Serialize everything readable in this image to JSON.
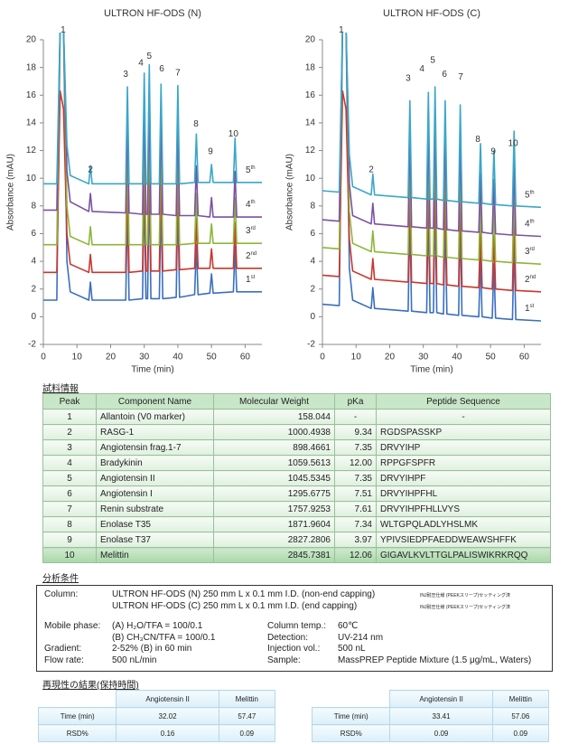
{
  "chart_data": [
    {
      "type": "line",
      "title": "ULTRON HF-ODS (N)",
      "x_label": "Time (min)",
      "y_label": "Absorbance (mAU)",
      "xlim": [
        0,
        65
      ],
      "ylim": [
        -2,
        20
      ],
      "xticks": [
        0,
        10,
        20,
        30,
        40,
        50,
        60
      ],
      "yticks": [
        -2,
        0,
        2,
        4,
        6,
        8,
        10,
        12,
        14,
        16,
        18,
        20
      ],
      "x": [
        0,
        4,
        5,
        6,
        7,
        8,
        13.5,
        14,
        14.5,
        24.5,
        25,
        25.5,
        29.5,
        30,
        30.5,
        31,
        31.5,
        32,
        34.5,
        35,
        35.5,
        39.5,
        40,
        40.5,
        45,
        45.5,
        46,
        49.5,
        50,
        50.5,
        56.5,
        57,
        57.5,
        65
      ],
      "series": [
        {
          "name": "1st",
          "color": "#3a6fc0",
          "values": [
            1.2,
            1.2,
            21,
            21,
            4,
            1.8,
            1.2,
            2.5,
            1.2,
            1.2,
            8.2,
            1.2,
            1.3,
            9.3,
            1.3,
            1.3,
            9.9,
            1.3,
            1.3,
            8.5,
            1.3,
            1.4,
            8.5,
            1.4,
            1.6,
            5.2,
            1.6,
            1.7,
            3.1,
            1.7,
            1.8,
            5.1,
            1.8,
            1.8
          ]
        },
        {
          "name": "2nd",
          "color": "#c8372d",
          "values": [
            3.2,
            3.2,
            16.3,
            15,
            6,
            3.8,
            3.2,
            4.5,
            3.2,
            3.2,
            10.2,
            3.2,
            3.3,
            11.3,
            3.3,
            3.3,
            11.9,
            3.3,
            3.3,
            10.5,
            3.3,
            3.4,
            10.5,
            3.4,
            3.5,
            7.1,
            3.5,
            3.5,
            4.9,
            3.5,
            3.5,
            6.8,
            3.5,
            3.5
          ]
        },
        {
          "name": "3rd",
          "color": "#8db63a",
          "values": [
            5.2,
            5.2,
            21,
            21,
            8,
            5.8,
            5.2,
            6.5,
            5.2,
            5.2,
            12.2,
            5.2,
            5.2,
            13.2,
            5.2,
            5.2,
            13.8,
            5.2,
            5.2,
            12.4,
            5.2,
            5.2,
            12.3,
            5.2,
            5.3,
            8.9,
            5.3,
            5.3,
            6.7,
            5.3,
            5.3,
            8.6,
            5.3,
            5.3
          ]
        },
        {
          "name": "4th",
          "color": "#7a52a3",
          "values": [
            7.7,
            7.7,
            21,
            21,
            10.5,
            8.3,
            7.6,
            8.9,
            7.6,
            7.5,
            14.5,
            7.5,
            7.4,
            15.4,
            7.4,
            7.4,
            16.0,
            7.4,
            7.4,
            14.6,
            7.4,
            7.3,
            14.4,
            7.3,
            7.3,
            10.9,
            7.3,
            7.2,
            8.6,
            7.2,
            7.2,
            10.5,
            7.2,
            7.2
          ]
        },
        {
          "name": "5th",
          "color": "#3aa7c9",
          "values": [
            9.6,
            9.6,
            21,
            21,
            12.4,
            10.2,
            9.6,
            10.9,
            9.6,
            9.6,
            16.6,
            9.6,
            9.6,
            17.6,
            9.6,
            9.6,
            18.2,
            9.6,
            9.6,
            16.8,
            9.6,
            9.6,
            16.7,
            9.6,
            9.7,
            13.2,
            9.7,
            9.7,
            11.0,
            9.7,
            9.7,
            12.9,
            9.7,
            9.7
          ]
        }
      ],
      "peak_labels": [
        {
          "label": "1",
          "x": 5.9,
          "y": 20.7
        },
        {
          "label": "2",
          "x": 14,
          "y": 10.6
        },
        {
          "label": "3",
          "x": 24.5,
          "y": 17.5
        },
        {
          "label": "4",
          "x": 29,
          "y": 18.3
        },
        {
          "label": "5",
          "x": 31.5,
          "y": 18.8
        },
        {
          "label": "6",
          "x": 35.2,
          "y": 17.9
        },
        {
          "label": "7",
          "x": 40,
          "y": 17.6
        },
        {
          "label": "8",
          "x": 45.4,
          "y": 13.9
        },
        {
          "label": "9",
          "x": 49.7,
          "y": 11.9
        },
        {
          "label": "10",
          "x": 56.5,
          "y": 13.2
        }
      ]
    },
    {
      "type": "line",
      "title": "ULTRON HF-ODS (C)",
      "x_label": "Time (min)",
      "y_label": "Absorbance (mAU)",
      "xlim": [
        0,
        65
      ],
      "ylim": [
        -2,
        20
      ],
      "xticks": [
        0,
        10,
        20,
        30,
        40,
        50,
        60
      ],
      "yticks": [
        -2,
        0,
        2,
        4,
        6,
        8,
        10,
        12,
        14,
        16,
        18,
        20
      ],
      "x": [
        0,
        5,
        6,
        7,
        8,
        9,
        14.5,
        15,
        15.5,
        25.5,
        26,
        26.5,
        31,
        31.5,
        32,
        33,
        33.5,
        34,
        36,
        36.5,
        37,
        40.5,
        41,
        41.5,
        46.5,
        47,
        47.5,
        50.5,
        51,
        51.5,
        56.5,
        57,
        57.5,
        65
      ],
      "series": [
        {
          "name": "1st",
          "color": "#3a6fc0",
          "values": [
            0.9,
            0.8,
            21,
            21,
            3.5,
            1.2,
            0.6,
            2.1,
            0.6,
            0.4,
            7.4,
            0.4,
            0.3,
            8.0,
            0.3,
            0.3,
            8.4,
            0.3,
            0.2,
            7.4,
            0.2,
            0.1,
            7.1,
            0.1,
            0.0,
            4.3,
            0.0,
            -0.1,
            3.8,
            -0.1,
            -0.2,
            5.2,
            -0.2,
            -0.3
          ]
        },
        {
          "name": "2nd",
          "color": "#c8372d",
          "values": [
            3.0,
            2.9,
            16.3,
            15,
            5.6,
            3.3,
            2.7,
            4.2,
            2.7,
            2.5,
            9.5,
            2.5,
            2.4,
            10.1,
            2.4,
            2.4,
            10.5,
            2.4,
            2.3,
            9.5,
            2.3,
            2.2,
            9.2,
            2.2,
            2.1,
            6.4,
            2.1,
            2.0,
            5.9,
            2.0,
            1.9,
            7.3,
            1.9,
            1.8
          ]
        },
        {
          "name": "3rd",
          "color": "#8db63a",
          "values": [
            5.0,
            4.9,
            21,
            21,
            7.6,
            5.3,
            4.7,
            6.2,
            4.7,
            4.5,
            11.5,
            4.5,
            4.4,
            12.1,
            4.4,
            4.4,
            12.5,
            4.4,
            4.3,
            11.5,
            4.3,
            4.2,
            11.2,
            4.2,
            4.1,
            8.4,
            4.1,
            4.0,
            7.9,
            4.0,
            3.9,
            9.3,
            3.9,
            3.8
          ]
        },
        {
          "name": "4th",
          "color": "#7a52a3",
          "values": [
            7.0,
            6.9,
            21,
            21,
            9.6,
            7.3,
            6.7,
            8.2,
            6.7,
            6.5,
            13.5,
            6.5,
            6.4,
            14.1,
            6.4,
            6.4,
            14.5,
            6.4,
            6.3,
            13.5,
            6.3,
            6.2,
            13.2,
            6.2,
            6.1,
            10.4,
            6.1,
            6.0,
            9.9,
            6.0,
            5.9,
            11.3,
            5.9,
            5.8
          ]
        },
        {
          "name": "5th",
          "color": "#3aa7c9",
          "values": [
            9.1,
            9.0,
            21,
            21,
            11.7,
            9.4,
            8.8,
            10.3,
            8.8,
            8.6,
            15.6,
            8.6,
            8.5,
            16.2,
            8.5,
            8.5,
            16.6,
            8.5,
            8.4,
            15.6,
            8.4,
            8.3,
            15.3,
            8.3,
            8.2,
            12.5,
            8.2,
            8.1,
            12.0,
            8.1,
            8.0,
            13.4,
            8.0,
            7.9
          ]
        }
      ],
      "peak_labels": [
        {
          "label": "1",
          "x": 5.6,
          "y": 20.7
        },
        {
          "label": "2",
          "x": 14.5,
          "y": 10.6
        },
        {
          "label": "3",
          "x": 25.5,
          "y": 17.2
        },
        {
          "label": "4",
          "x": 29.6,
          "y": 17.9
        },
        {
          "label": "5",
          "x": 32.8,
          "y": 18.5
        },
        {
          "label": "6",
          "x": 36.3,
          "y": 17.5
        },
        {
          "label": "7",
          "x": 41.1,
          "y": 17.3
        },
        {
          "label": "8",
          "x": 46.2,
          "y": 12.8
        },
        {
          "label": "9",
          "x": 50.8,
          "y": 11.9
        },
        {
          "label": "10",
          "x": 56.7,
          "y": 12.5
        }
      ]
    }
  ],
  "sample_info": {
    "heading": "試料情報",
    "columns": [
      "Peak",
      "Component Name",
      "Molecular Weight",
      "pKa",
      "Peptide Sequence"
    ],
    "rows": [
      [
        "1",
        "Allantoin (V0 marker)",
        "158.044",
        "-",
        "-"
      ],
      [
        "2",
        "RASG-1",
        "1000.4938",
        "9.34",
        "RGDSPASSKP"
      ],
      [
        "3",
        "Angiotensin frag.1-7",
        "898.4661",
        "7.35",
        "DRVYIHP"
      ],
      [
        "4",
        "Bradykinin",
        "1059.5613",
        "12.00",
        "RPPGFSPFR"
      ],
      [
        "5",
        "Angiotensin II",
        "1045.5345",
        "7.35",
        "DRVYIHPF"
      ],
      [
        "6",
        "Angiotensin I",
        "1295.6775",
        "7.51",
        "DRVYIHPFHL"
      ],
      [
        "7",
        "Renin substrate",
        "1757.9253",
        "7.61",
        "DRVYIHPFHLLVYS"
      ],
      [
        "8",
        "Enolase T35",
        "1871.9604",
        "7.34",
        "WLTGPQLADLYHSLMK"
      ],
      [
        "9",
        "Enolase T37",
        "2827.2806",
        "3.97",
        "YPIVSIEDPFAEDDWEAWSHFFK"
      ],
      [
        "10",
        "Melittin",
        "2845.7381",
        "12.06",
        "GIGAVLKVLTTGLPALISWIKRKRQQ"
      ]
    ]
  },
  "conditions": {
    "heading": "分析条件",
    "column_label": "Column:",
    "columns": [
      {
        "text": "ULTRON HF-ODS (N) 250 mm L x 0.1 mm I.D. (non-end capping)",
        "note": "INJ耐圧仕様 (PEEKスリーブ)セッティング済"
      },
      {
        "text": "ULTRON HF-ODS (C) 250 mm L x 0.1 mm I.D. (end capping)",
        "note": "INJ耐圧仕様 (PEEKスリーブ)セッティング済"
      }
    ],
    "mobile_phase": {
      "label": "Mobile phase:",
      "lines": [
        "(A) H₂O/TFA = 100/0.1",
        "(B) CH₃CN/TFA = 100/0.1"
      ]
    },
    "gradient": {
      "label": "Gradient:",
      "value": "2-52% (B) in 60 min"
    },
    "flow_rate": {
      "label": "Flow rate:",
      "value": "500 nL/min"
    },
    "column_temp": {
      "label": "Column temp.:",
      "value": "60℃"
    },
    "detection": {
      "label": "Detection:",
      "value": "UV-214 nm"
    },
    "injection_vol": {
      "label": "Injection vol.:",
      "value": "500 nL"
    },
    "sample": {
      "label": "Sample:",
      "value": "MassPREP Peptide Mixture (1.5 μg/mL, Waters)"
    }
  },
  "reproducibility": {
    "heading": "再現性の結果(保持時間)",
    "tables": [
      {
        "columns": [
          "Angiotensin II",
          "Melittin"
        ],
        "rows": [
          {
            "label": "Time (min)",
            "values": [
              32.02,
              57.47
            ]
          },
          {
            "label": "RSD%",
            "values": [
              0.16,
              0.09
            ]
          }
        ]
      },
      {
        "columns": [
          "Angiotensin II",
          "Melittin"
        ],
        "rows": [
          {
            "label": "Time (min)",
            "values": [
              33.41,
              57.06
            ]
          },
          {
            "label": "RSD%",
            "values": [
              0.09,
              0.09
            ]
          }
        ]
      }
    ]
  }
}
